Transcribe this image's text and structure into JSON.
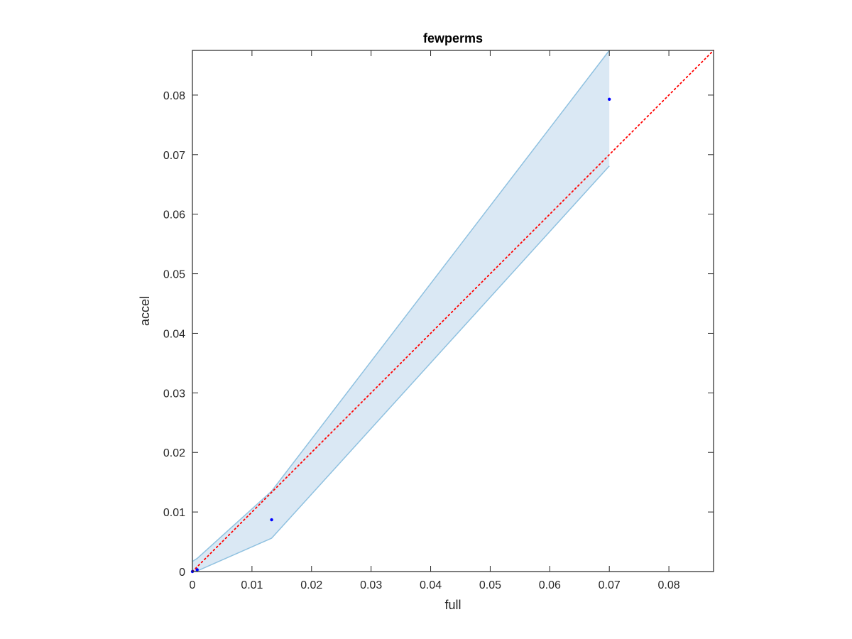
{
  "chart_data": {
    "type": "scatter",
    "title": "fewperms",
    "xlabel": "full",
    "ylabel": "accel",
    "xlim": [
      0,
      0.0875
    ],
    "ylim": [
      0,
      0.0875
    ],
    "xticks": [
      0,
      0.01,
      0.02,
      0.03,
      0.04,
      0.05,
      0.06,
      0.07,
      0.08
    ],
    "xtick_labels": [
      "0",
      "0.01",
      "0.02",
      "0.03",
      "0.04",
      "0.05",
      "0.06",
      "0.07",
      "0.08"
    ],
    "yticks": [
      0,
      0.01,
      0.02,
      0.03,
      0.04,
      0.05,
      0.06,
      0.07,
      0.08
    ],
    "ytick_labels": [
      "0",
      "0.01",
      "0.02",
      "0.03",
      "0.04",
      "0.05",
      "0.06",
      "0.07",
      "0.08"
    ],
    "grid": false,
    "points": {
      "x": [
        0,
        0.0008,
        0.0133,
        0.07
      ],
      "y": [
        0,
        0.0003,
        0.0087,
        0.0793
      ],
      "color": "#0000ff"
    },
    "band": {
      "x": [
        0,
        0.0008,
        0.0133,
        0.07
      ],
      "lower": [
        0,
        0.0001,
        0.0056,
        0.0681
      ],
      "upper": [
        0.0017,
        0.0022,
        0.0135,
        0.0875
      ],
      "fill": "#dae8f4",
      "edge": "#8fc1e0"
    },
    "reference_line": {
      "x": [
        0,
        0.0875
      ],
      "y": [
        0,
        0.0875
      ],
      "style": "dotted",
      "color": "#ff0000"
    }
  }
}
